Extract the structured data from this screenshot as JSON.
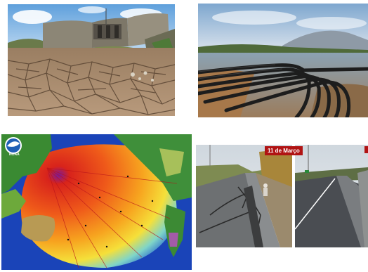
{
  "collage": {
    "tiles": [
      {
        "name": "drought-reservoir-photo",
        "subject": "dry cracked reservoir bed below concrete dam"
      },
      {
        "name": "low-water-pipes-photo",
        "subject": "exposed black pipelines in low reservoir"
      },
      {
        "name": "tsunami-wave-height-map-photo",
        "subject": "NOAA Pacific tsunami energy map"
      },
      {
        "name": "earthquake-road-damage-photo",
        "subject": "cracked highway before and after repair"
      }
    ],
    "map_logo_label": "NOAA",
    "road_date_caption": "11 de Março"
  },
  "colors": {
    "sky": "#7fb6e6",
    "crack_soil": "#a9896a",
    "ocean_deep": "#1a44b8",
    "wave_red": "#d8231b",
    "caption_red": "#b01313"
  }
}
